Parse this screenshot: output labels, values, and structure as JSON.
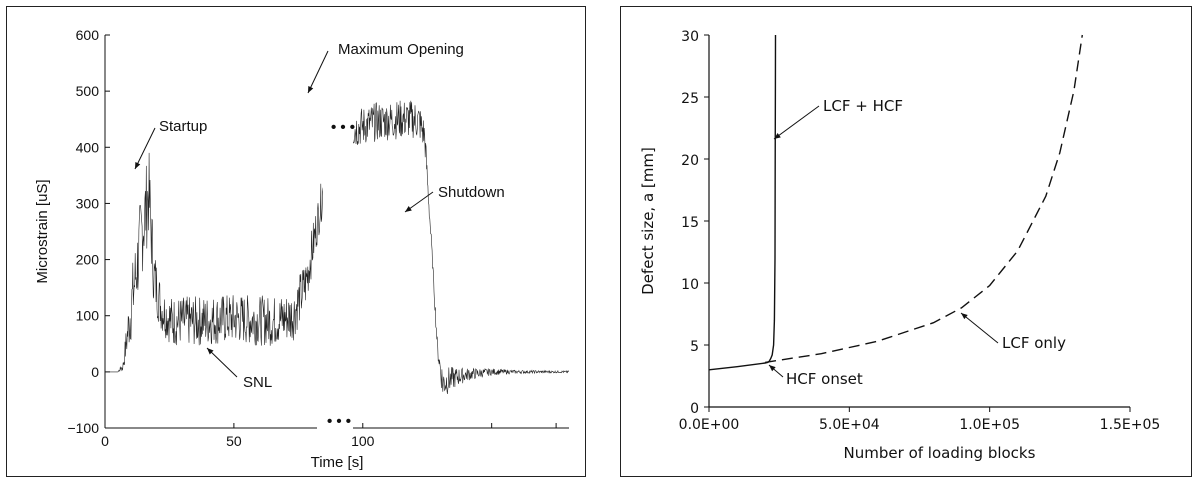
{
  "chart_data": [
    {
      "type": "line",
      "xlabel": "Time [s]",
      "ylabel": "Microstrain [uS]",
      "xlim": [
        0,
        180
      ],
      "ylim": [
        -100,
        600
      ],
      "x_ticks": [
        "0",
        "50",
        "100"
      ],
      "y_ticks": [
        "600",
        "500",
        "400",
        "300",
        "200",
        "100",
        "0",
        "−100"
      ],
      "axis_break_symbol": "• • •",
      "annotations": [
        {
          "label": "Maximum Opening",
          "x": 130,
          "y": 455
        },
        {
          "label": "Startup",
          "x": 17,
          "y": 330
        },
        {
          "label": "Shutdown",
          "x": 132,
          "y": 260
        },
        {
          "label": "SNL",
          "x": 67,
          "y": 80
        }
      ],
      "series": [
        {
          "x": [
            0,
            5,
            7,
            10,
            14,
            17,
            19,
            22,
            26,
            35,
            50,
            65,
            73,
            78,
            85,
            95,
            105,
            115,
            120,
            122,
            124,
            127,
            129,
            131,
            133,
            136,
            140,
            150,
            160,
            175
          ],
          "y": [
            0,
            0,
            10,
            110,
            240,
            320,
            170,
            110,
            90,
            90,
            95,
            90,
            100,
            160,
            330,
            430,
            445,
            450,
            450,
            445,
            420,
            200,
            40,
            -20,
            -15,
            -10,
            -5,
            0,
            0,
            0
          ],
          "noise_band_y": [
            0,
            0,
            10,
            60,
            80,
            80,
            60,
            40,
            45,
            45,
            45,
            45,
            45,
            45,
            35,
            35,
            35,
            35,
            35,
            35,
            30,
            10,
            15,
            30,
            25,
            18,
            12,
            6,
            3,
            2
          ]
        }
      ]
    },
    {
      "type": "line",
      "xlabel": "Number of loading blocks",
      "ylabel": "Defect size, a [mm]",
      "xlim": [
        0,
        150000
      ],
      "ylim": [
        0,
        30
      ],
      "x_ticks": [
        "0.0E+00",
        "5.0E+04",
        "1.0E+05",
        "1.5E+05"
      ],
      "y_ticks": [
        "30",
        "25",
        "20",
        "15",
        "10",
        "5",
        "0"
      ],
      "annotations": [
        {
          "label": "LCF + HCF",
          "x": 24000,
          "y": 22
        },
        {
          "label": "LCF only",
          "x": 92000,
          "y": 7.8
        },
        {
          "label": "HCF onset",
          "x": 21500,
          "y": 3.5
        }
      ],
      "series": [
        {
          "name": "LCF + HCF",
          "style": "solid",
          "x": [
            0,
            10000,
            20000,
            21000,
            21500,
            22000,
            22500,
            23000,
            23300,
            23500,
            23600,
            23650,
            23700
          ],
          "y": [
            3.0,
            3.25,
            3.55,
            3.6,
            3.7,
            3.9,
            4.2,
            5.0,
            7.0,
            12.0,
            20.0,
            26.0,
            30.0
          ]
        },
        {
          "name": "LCF only",
          "style": "dashed",
          "x": [
            20000,
            40000,
            60000,
            80000,
            90000,
            100000,
            110000,
            120000,
            125000,
            130000,
            133000
          ],
          "y": [
            3.6,
            4.3,
            5.3,
            6.8,
            8.0,
            9.8,
            12.6,
            17.0,
            20.5,
            25.5,
            30.0
          ]
        }
      ]
    }
  ]
}
